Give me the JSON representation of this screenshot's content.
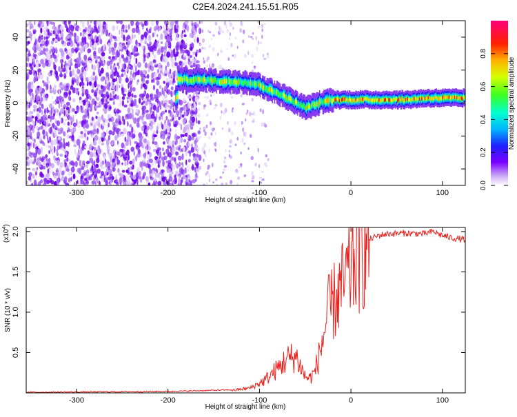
{
  "title": "C2E4.2024.241.15.51.R05",
  "chart_data": [
    {
      "type": "heatmap",
      "title": "C2E4.2024.241.15.51.R05",
      "xlabel": "Height of straight line (km)",
      "ylabel": "Frequency (Hz)",
      "xlim": [
        -355,
        125
      ],
      "ylim": [
        -50,
        50
      ],
      "xticks": [
        -300,
        -200,
        -100,
        0,
        100
      ],
      "yticks": [
        -40,
        -20,
        0,
        20,
        40
      ],
      "colorbar": {
        "label": "Normalized spectral amplitude",
        "range": [
          0,
          1
        ],
        "ticks": [
          "0.0",
          "0.2",
          "0.4",
          "0.6",
          "0.8"
        ],
        "colormap": "white-violet-blue-cyan-green-yellow-orange-red-pink"
      },
      "ridge": {
        "x": [
          -190,
          -180,
          -160,
          -140,
          -120,
          -100,
          -90,
          -80,
          -70,
          -60,
          -50,
          -40,
          -30,
          -20,
          0,
          20,
          40,
          60,
          80,
          100,
          125
        ],
        "freq": [
          15,
          14,
          14,
          13,
          13,
          11,
          8,
          6,
          3,
          0,
          -3,
          -1,
          1,
          2,
          2,
          2,
          2,
          2,
          3,
          3,
          3
        ]
      }
    },
    {
      "type": "line",
      "xlabel": "Height of straight line (km)",
      "ylabel": "SNR (10 * v/v)",
      "ylabel_scale": "(x10^4)",
      "xlim": [
        -355,
        125
      ],
      "ylim": [
        0,
        2.05
      ],
      "xticks": [
        -300,
        -200,
        -100,
        0,
        100
      ],
      "yticks": [
        "0.5",
        "1.0",
        "1.5",
        "2.0"
      ],
      "color": "#e8201c",
      "series": [
        {
          "x": [
            -355,
            -200,
            -130,
            -110,
            -95,
            -80,
            -70,
            -60,
            -50,
            -45,
            -40,
            -35,
            -30,
            -25,
            -20,
            -15,
            -10,
            -5,
            0,
            10,
            20,
            30,
            40,
            60,
            80,
            90,
            100,
            110,
            125
          ],
          "y": [
            0.0,
            0.01,
            0.03,
            0.06,
            0.15,
            0.3,
            0.42,
            0.45,
            0.2,
            0.18,
            0.25,
            0.45,
            0.7,
            1.0,
            1.1,
            1.2,
            1.3,
            1.4,
            1.55,
            1.75,
            1.9,
            1.95,
            1.97,
            1.98,
            1.97,
            2.0,
            1.95,
            1.92,
            1.9
          ]
        }
      ]
    }
  ]
}
